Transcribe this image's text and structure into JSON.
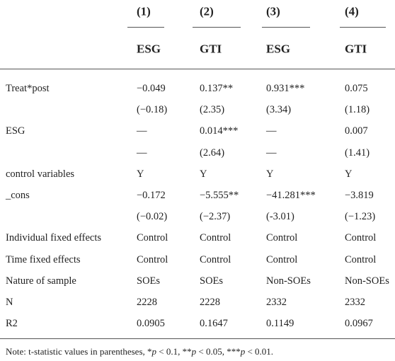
{
  "table": {
    "columns": [
      "(1)",
      "(2)",
      "(3)",
      "(4)"
    ],
    "headers": [
      "ESG",
      "GTI",
      "ESG",
      "GTI"
    ],
    "rows": [
      {
        "label": "Treat*post",
        "cells": [
          "−0.049",
          "0.137**",
          "0.931***",
          "0.075"
        ]
      },
      {
        "cells": [
          "(−0.18)",
          "(2.35)",
          "(3.34)",
          "(1.18)"
        ]
      },
      {
        "label": "ESG",
        "cells": [
          "—",
          "0.014***",
          "—",
          "0.007"
        ]
      },
      {
        "cells": [
          "—",
          "(2.64)",
          "—",
          "(1.41)"
        ]
      },
      {
        "label": "control variables",
        "cells": [
          "Y",
          "Y",
          "Y",
          "Y"
        ]
      },
      {
        "label": "_cons",
        "cells": [
          "−0.172",
          "−5.555**",
          "−41.281***",
          "−3.819"
        ]
      },
      {
        "cells": [
          "(−0.02)",
          "(−2.37)",
          "(-3.01)",
          "(−1.23)"
        ]
      },
      {
        "label": "Individual fixed effects",
        "cells": [
          "Control",
          "Control",
          "Control",
          "Control"
        ]
      },
      {
        "label": "Time fixed effects",
        "cells": [
          "Control",
          "Control",
          "Control",
          "Control"
        ]
      },
      {
        "label": "Nature of sample",
        "cells": [
          "SOEs",
          "SOEs",
          "Non-SOEs",
          "Non-SOEs"
        ]
      },
      {
        "label": "N",
        "cells": [
          "2228",
          "2228",
          "2332",
          "2332"
        ]
      },
      {
        "label": "R2",
        "cells": [
          "0.0905",
          "0.1647",
          "0.1149",
          "0.0967"
        ]
      }
    ],
    "note": [
      "Note: t-statistic values in parentheses, *",
      "p",
      " < 0.1, **",
      "p",
      " < 0.05, ***",
      "p",
      " < 0.01."
    ]
  }
}
